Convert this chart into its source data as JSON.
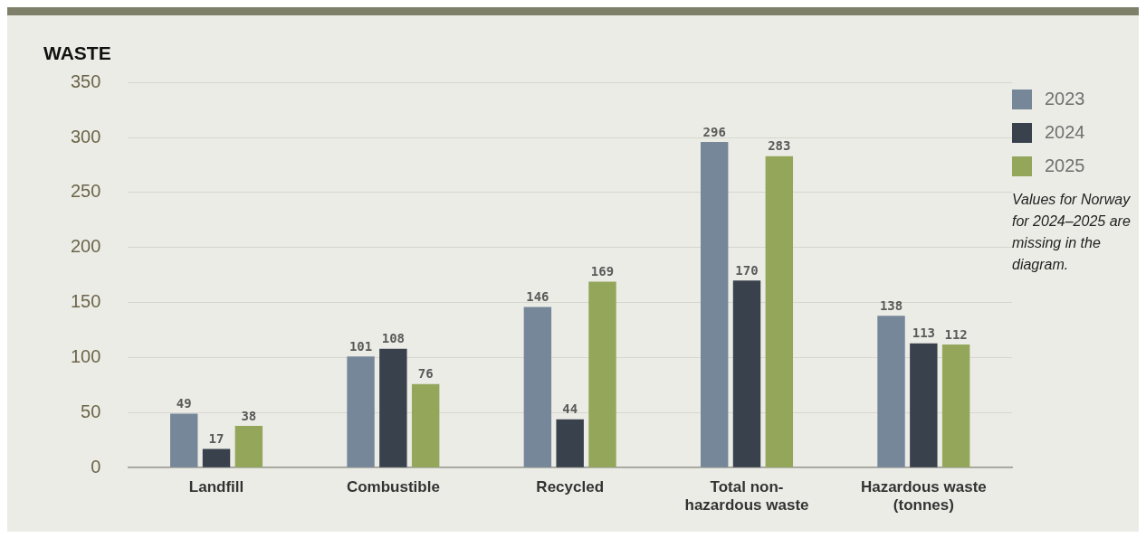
{
  "chart_data": {
    "type": "bar",
    "title": "WASTE",
    "categories": [
      "Landfill",
      "Combustible",
      "Recycled",
      "Total non-hazardous waste",
      "Hazardous waste (tonnes)"
    ],
    "series": [
      {
        "name": "2023",
        "color": "#76879a",
        "values": [
          49,
          101,
          146,
          296,
          138
        ]
      },
      {
        "name": "2024",
        "color": "#38414c",
        "values": [
          17,
          108,
          44,
          170,
          113
        ]
      },
      {
        "name": "2025",
        "color": "#93a65a",
        "values": [
          38,
          76,
          169,
          283,
          112
        ]
      }
    ],
    "ylim": [
      0,
      350
    ],
    "yticks": [
      0,
      50,
      100,
      150,
      200,
      250,
      300,
      350
    ],
    "grid": "y",
    "legend": "top right",
    "data_labels": true,
    "annotations": [
      "Values for Norway for 2024–2025 are missing in the diagram."
    ]
  }
}
